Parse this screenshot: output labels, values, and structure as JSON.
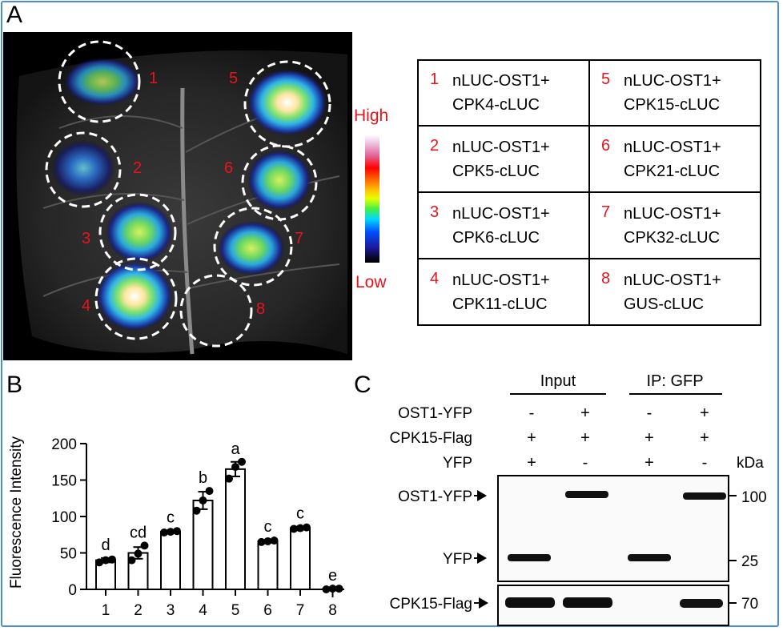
{
  "panels": {
    "a": "A",
    "b": "B",
    "c": "C"
  },
  "panel_a": {
    "spot_numbers": [
      "1",
      "2",
      "3",
      "4",
      "5",
      "6",
      "7",
      "8"
    ],
    "scale_high": "High",
    "scale_low": "Low",
    "legend": [
      {
        "num": "1",
        "line1": "nLUC-OST1+",
        "line2": "CPK4-cLUC"
      },
      {
        "num": "5",
        "line1": "nLUC-OST1+",
        "line2": "CPK15-cLUC"
      },
      {
        "num": "2",
        "line1": "nLUC-OST1+",
        "line2": "CPK5-cLUC"
      },
      {
        "num": "6",
        "line1": "nLUC-OST1+",
        "line2": "CPK21-cLUC"
      },
      {
        "num": "3",
        "line1": "nLUC-OST1+",
        "line2": "CPK6-cLUC"
      },
      {
        "num": "7",
        "line1": "nLUC-OST1+",
        "line2": "CPK32-cLUC"
      },
      {
        "num": "4",
        "line1": "nLUC-OST1+",
        "line2": "CPK11-cLUC"
      },
      {
        "num": "8",
        "line1": "nLUC-OST1+",
        "line2": "GUS-cLUC"
      }
    ]
  },
  "chart_data": {
    "type": "bar",
    "title": "",
    "xlabel": "",
    "ylabel": "Fluorescence Intensity",
    "ylim": [
      0,
      200
    ],
    "yticks": [
      "0",
      "50",
      "100",
      "150",
      "200"
    ],
    "categories": [
      "1",
      "2",
      "3",
      "4",
      "5",
      "6",
      "7",
      "8"
    ],
    "values": [
      40,
      50,
      79,
      122,
      165,
      66,
      84,
      1
    ],
    "errors": [
      3,
      8,
      2,
      12,
      10,
      2,
      2,
      0
    ],
    "points": [
      [
        37,
        40,
        41
      ],
      [
        40,
        49,
        60
      ],
      [
        78,
        79,
        80
      ],
      [
        108,
        122,
        135
      ],
      [
        152,
        168,
        175
      ],
      [
        65,
        66,
        67
      ],
      [
        83,
        84,
        85
      ],
      [
        0,
        1,
        1
      ]
    ],
    "significance_letters": [
      "d",
      "cd",
      "c",
      "b",
      "a",
      "c",
      "c",
      "e"
    ],
    "grid": false
  },
  "panel_c": {
    "group_input": "Input",
    "group_ip": "IP: GFP",
    "row_labels": [
      "OST1-YFP",
      "CPK15-Flag",
      "YFP"
    ],
    "row_values": [
      [
        "-",
        "+",
        "-",
        "+"
      ],
      [
        "+",
        "+",
        "+",
        "+"
      ],
      [
        "+",
        "-",
        "+",
        "-"
      ]
    ],
    "unit": "kDa",
    "band_labels": [
      "OST1-YFP",
      "YFP",
      "CPK15-Flag"
    ],
    "markers": [
      "100",
      "25",
      "70"
    ]
  }
}
